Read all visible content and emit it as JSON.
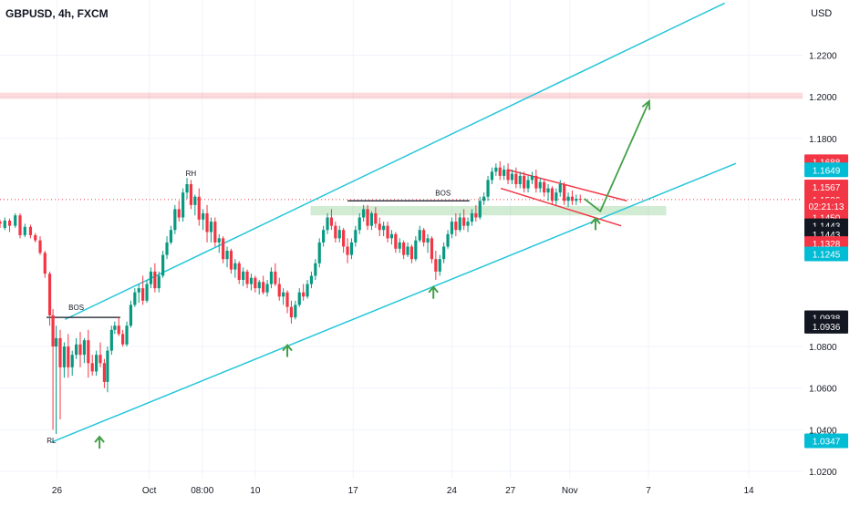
{
  "header": {
    "title": "GBPUSD, 4h, FXCM",
    "currency": "USD"
  },
  "chart_data": {
    "type": "candlestick",
    "symbol": "GBPUSD",
    "timeframe": "4h",
    "source": "FXCM",
    "y_axis": {
      "ticks": [
        "1.2200",
        "1.2000",
        "1.1800",
        "1.0800",
        "1.0600",
        "1.0400",
        "1.0200"
      ],
      "tick_values": [
        1.22,
        1.2,
        1.18,
        1.08,
        1.06,
        1.04,
        1.02
      ],
      "ylim": [
        1.0165,
        1.2465
      ]
    },
    "x_axis": {
      "ticks": [
        "26",
        "Oct",
        "08:00",
        "10",
        "17",
        "24",
        "27",
        "Nov",
        "7",
        "14"
      ],
      "xlim": [
        0,
        1
      ]
    },
    "price_labels": [
      {
        "value": "1.1688",
        "price": 1.1688,
        "bg": "#f23645",
        "fg": "#ffffff"
      },
      {
        "value": "1.1649",
        "price": 1.1649,
        "bg": "#00bcd4",
        "fg": "#ffffff"
      },
      {
        "value": "1.1567",
        "price": 1.1567,
        "bg": "#f23645",
        "fg": "#ffffff"
      },
      {
        "value": "1.1506",
        "price": 1.1506,
        "bg": "#f23645",
        "fg": "#ffffff"
      },
      {
        "value": "02:21:13",
        "price": 1.1475,
        "bg": "#f23645",
        "fg": "#ffffff"
      },
      {
        "value": "1.1450",
        "price": 1.142,
        "bg": "#f23645",
        "fg": "#ffffff"
      },
      {
        "value": "1.1443",
        "price": 1.138,
        "bg": "#131722",
        "fg": "#ffffff"
      },
      {
        "value": "1.1443",
        "price": 1.134,
        "bg": "#131722",
        "fg": "#ffffff"
      },
      {
        "value": "1.1328",
        "price": 1.1295,
        "bg": "#f23645",
        "fg": "#ffffff"
      },
      {
        "value": "1.1245",
        "price": 1.1245,
        "bg": "#00bcd4",
        "fg": "#ffffff"
      },
      {
        "value": "1.0938",
        "price": 1.0938,
        "bg": "#131722",
        "fg": "#ffffff"
      },
      {
        "value": "1.0936",
        "price": 1.0897,
        "bg": "#131722",
        "fg": "#ffffff"
      },
      {
        "value": "1.0347",
        "price": 1.0347,
        "bg": "#00bcd4",
        "fg": "#ffffff"
      }
    ],
    "annotations": [
      {
        "text": "BOS",
        "x": 0.095,
        "price": 1.0975
      },
      {
        "text": "RH",
        "x": 0.238,
        "price": 1.162
      },
      {
        "text": "RL",
        "x": 0.064,
        "price": 1.0335
      },
      {
        "text": "BOS",
        "x": 0.552,
        "price": 1.1525
      }
    ],
    "candles": [
      [
        0.0,
        1.14,
        1.141,
        1.139,
        1.137
      ],
      [
        0.006,
        1.137,
        1.142,
        1.1405,
        1.136
      ],
      [
        0.012,
        1.1405,
        1.1415,
        1.138,
        1.135
      ],
      [
        0.019,
        1.138,
        1.144,
        1.143,
        1.137
      ],
      [
        0.025,
        1.143,
        1.144,
        1.1335,
        1.132
      ],
      [
        0.031,
        1.1335,
        1.139,
        1.1375,
        1.1325
      ],
      [
        0.038,
        1.1375,
        1.1385,
        1.1335,
        1.132
      ],
      [
        0.044,
        1.1335,
        1.1345,
        1.131,
        1.13
      ],
      [
        0.05,
        1.131,
        1.133,
        1.125,
        1.124
      ],
      [
        0.056,
        1.125,
        1.126,
        1.115,
        1.113
      ],
      [
        0.062,
        1.115,
        1.116,
        1.095,
        1.09
      ],
      [
        0.066,
        1.095,
        1.098,
        1.08,
        1.04
      ],
      [
        0.07,
        1.08,
        1.09,
        1.084,
        1.038
      ],
      [
        0.075,
        1.084,
        1.088,
        1.07,
        1.045
      ],
      [
        0.08,
        1.07,
        1.082,
        1.08,
        1.065
      ],
      [
        0.085,
        1.08,
        1.086,
        1.07,
        1.065
      ],
      [
        0.09,
        1.07,
        1.078,
        1.076,
        1.066
      ],
      [
        0.095,
        1.076,
        1.084,
        1.081,
        1.074
      ],
      [
        0.1,
        1.081,
        1.087,
        1.076,
        1.07
      ],
      [
        0.105,
        1.076,
        1.084,
        1.083,
        1.072
      ],
      [
        0.11,
        1.083,
        1.088,
        1.072,
        1.065
      ],
      [
        0.115,
        1.072,
        1.076,
        1.068,
        1.066
      ],
      [
        0.12,
        1.068,
        1.078,
        1.076,
        1.066
      ],
      [
        0.125,
        1.076,
        1.082,
        1.072,
        1.07
      ],
      [
        0.13,
        1.072,
        1.074,
        1.063,
        1.06
      ],
      [
        0.134,
        1.063,
        1.08,
        1.078,
        1.058
      ],
      [
        0.139,
        1.078,
        1.09,
        1.088,
        1.076
      ],
      [
        0.143,
        1.088,
        1.092,
        1.09,
        1.086
      ],
      [
        0.148,
        1.09,
        1.094,
        1.086,
        1.085
      ],
      [
        0.153,
        1.086,
        1.088,
        1.081,
        1.08
      ],
      [
        0.158,
        1.081,
        1.092,
        1.09,
        1.08
      ],
      [
        0.163,
        1.09,
        1.102,
        1.1,
        1.089
      ],
      [
        0.168,
        1.1,
        1.108,
        1.106,
        1.099
      ],
      [
        0.173,
        1.106,
        1.11,
        1.108,
        1.101
      ],
      [
        0.178,
        1.108,
        1.114,
        1.102,
        1.1
      ],
      [
        0.183,
        1.102,
        1.112,
        1.11,
        1.101
      ],
      [
        0.188,
        1.11,
        1.118,
        1.116,
        1.108
      ],
      [
        0.193,
        1.116,
        1.12,
        1.108,
        1.106
      ],
      [
        0.198,
        1.108,
        1.116,
        1.114,
        1.106
      ],
      [
        0.203,
        1.114,
        1.126,
        1.124,
        1.113
      ],
      [
        0.208,
        1.124,
        1.133,
        1.13,
        1.122
      ],
      [
        0.213,
        1.13,
        1.138,
        1.136,
        1.129
      ],
      [
        0.218,
        1.136,
        1.148,
        1.146,
        1.134
      ],
      [
        0.223,
        1.146,
        1.15,
        1.142,
        1.14
      ],
      [
        0.228,
        1.142,
        1.156,
        1.154,
        1.14
      ],
      [
        0.233,
        1.154,
        1.161,
        1.158,
        1.151
      ],
      [
        0.238,
        1.158,
        1.16,
        1.148,
        1.146
      ],
      [
        0.243,
        1.148,
        1.153,
        1.152,
        1.143
      ],
      [
        0.248,
        1.152,
        1.156,
        1.141,
        1.138
      ],
      [
        0.253,
        1.141,
        1.146,
        1.144,
        1.136
      ],
      [
        0.258,
        1.144,
        1.148,
        1.135,
        1.13
      ],
      [
        0.263,
        1.135,
        1.142,
        1.14,
        1.13
      ],
      [
        0.268,
        1.14,
        1.142,
        1.13,
        1.128
      ],
      [
        0.273,
        1.13,
        1.134,
        1.132,
        1.125
      ],
      [
        0.278,
        1.132,
        1.133,
        1.122,
        1.12
      ],
      [
        0.283,
        1.122,
        1.128,
        1.126,
        1.118
      ],
      [
        0.288,
        1.126,
        1.127,
        1.117,
        1.115
      ],
      [
        0.293,
        1.117,
        1.122,
        1.12,
        1.113
      ],
      [
        0.298,
        1.12,
        1.121,
        1.112,
        1.11
      ],
      [
        0.303,
        1.112,
        1.118,
        1.116,
        1.109
      ],
      [
        0.308,
        1.116,
        1.117,
        1.11,
        1.108
      ],
      [
        0.313,
        1.11,
        1.115,
        1.113,
        1.107
      ],
      [
        0.318,
        1.113,
        1.114,
        1.108,
        1.106
      ],
      [
        0.323,
        1.108,
        1.112,
        1.111,
        1.105
      ],
      [
        0.328,
        1.111,
        1.114,
        1.106,
        1.105
      ],
      [
        0.333,
        1.106,
        1.112,
        1.11,
        1.104
      ],
      [
        0.338,
        1.11,
        1.118,
        1.116,
        1.108
      ],
      [
        0.343,
        1.116,
        1.12,
        1.11,
        1.109
      ],
      [
        0.348,
        1.11,
        1.113,
        1.104,
        1.102
      ],
      [
        0.353,
        1.104,
        1.108,
        1.106,
        1.1
      ],
      [
        0.358,
        1.106,
        1.107,
        1.099,
        1.096
      ],
      [
        0.363,
        1.099,
        1.102,
        1.094,
        1.091
      ],
      [
        0.368,
        1.094,
        1.102,
        1.1,
        1.093
      ],
      [
        0.373,
        1.1,
        1.108,
        1.106,
        1.099
      ],
      [
        0.378,
        1.106,
        1.11,
        1.104,
        1.102
      ],
      [
        0.383,
        1.104,
        1.112,
        1.11,
        1.103
      ],
      [
        0.388,
        1.11,
        1.116,
        1.114,
        1.108
      ],
      [
        0.393,
        1.114,
        1.122,
        1.12,
        1.112
      ],
      [
        0.398,
        1.12,
        1.132,
        1.13,
        1.118
      ],
      [
        0.403,
        1.13,
        1.138,
        1.136,
        1.128
      ],
      [
        0.408,
        1.136,
        1.144,
        1.142,
        1.134
      ],
      [
        0.413,
        1.142,
        1.146,
        1.138,
        1.136
      ],
      [
        0.418,
        1.138,
        1.14,
        1.132,
        1.13
      ],
      [
        0.423,
        1.132,
        1.138,
        1.136,
        1.13
      ],
      [
        0.428,
        1.136,
        1.137,
        1.128,
        1.125
      ],
      [
        0.433,
        1.128,
        1.132,
        1.124,
        1.12
      ],
      [
        0.438,
        1.124,
        1.132,
        1.13,
        1.122
      ],
      [
        0.443,
        1.13,
        1.138,
        1.136,
        1.128
      ],
      [
        0.448,
        1.136,
        1.144,
        1.142,
        1.134
      ],
      [
        0.453,
        1.142,
        1.148,
        1.146,
        1.14
      ],
      [
        0.458,
        1.146,
        1.148,
        1.138,
        1.136
      ],
      [
        0.463,
        1.138,
        1.145,
        1.144,
        1.136
      ],
      [
        0.468,
        1.144,
        1.147,
        1.139,
        1.137
      ],
      [
        0.473,
        1.139,
        1.142,
        1.136,
        1.133
      ],
      [
        0.478,
        1.136,
        1.14,
        1.138,
        1.133
      ],
      [
        0.483,
        1.138,
        1.14,
        1.132,
        1.13
      ],
      [
        0.488,
        1.132,
        1.136,
        1.134,
        1.129
      ],
      [
        0.493,
        1.134,
        1.135,
        1.127,
        1.125
      ],
      [
        0.498,
        1.127,
        1.132,
        1.13,
        1.125
      ],
      [
        0.503,
        1.13,
        1.131,
        1.124,
        1.122
      ],
      [
        0.508,
        1.124,
        1.13,
        1.128,
        1.123
      ],
      [
        0.513,
        1.128,
        1.129,
        1.122,
        1.12
      ],
      [
        0.518,
        1.122,
        1.133,
        1.131,
        1.121
      ],
      [
        0.523,
        1.131,
        1.138,
        1.136,
        1.13
      ],
      [
        0.528,
        1.136,
        1.137,
        1.13,
        1.128
      ],
      [
        0.533,
        1.13,
        1.134,
        1.132,
        1.125
      ],
      [
        0.538,
        1.132,
        1.133,
        1.122,
        1.12
      ],
      [
        0.543,
        1.122,
        1.126,
        1.116,
        1.112
      ],
      [
        0.548,
        1.116,
        1.124,
        1.122,
        1.114
      ],
      [
        0.553,
        1.122,
        1.13,
        1.128,
        1.12
      ],
      [
        0.558,
        1.128,
        1.136,
        1.134,
        1.127
      ],
      [
        0.563,
        1.134,
        1.142,
        1.14,
        1.132
      ],
      [
        0.568,
        1.14,
        1.144,
        1.136,
        1.133
      ],
      [
        0.573,
        1.136,
        1.144,
        1.142,
        1.135
      ],
      [
        0.578,
        1.142,
        1.146,
        1.138,
        1.136
      ],
      [
        0.583,
        1.138,
        1.142,
        1.14,
        1.135
      ],
      [
        0.588,
        1.14,
        1.146,
        1.144,
        1.138
      ],
      [
        0.593,
        1.144,
        1.148,
        1.142,
        1.14
      ],
      [
        0.598,
        1.142,
        1.152,
        1.15,
        1.141
      ],
      [
        0.603,
        1.15,
        1.154,
        1.152,
        1.148
      ],
      [
        0.608,
        1.152,
        1.162,
        1.16,
        1.15
      ],
      [
        0.613,
        1.16,
        1.166,
        1.164,
        1.158
      ],
      [
        0.618,
        1.164,
        1.168,
        1.166,
        1.162
      ],
      [
        0.623,
        1.166,
        1.169,
        1.162,
        1.16
      ],
      [
        0.628,
        1.162,
        1.167,
        1.165,
        1.16
      ],
      [
        0.633,
        1.165,
        1.168,
        1.16,
        1.158
      ],
      [
        0.638,
        1.16,
        1.165,
        1.163,
        1.158
      ],
      [
        0.643,
        1.163,
        1.166,
        1.158,
        1.156
      ],
      [
        0.648,
        1.158,
        1.164,
        1.162,
        1.156
      ],
      [
        0.653,
        1.162,
        1.164,
        1.156,
        1.154
      ],
      [
        0.658,
        1.156,
        1.162,
        1.16,
        1.154
      ],
      [
        0.663,
        1.16,
        1.164,
        1.162,
        1.158
      ],
      [
        0.668,
        1.162,
        1.165,
        1.156,
        1.154
      ],
      [
        0.673,
        1.156,
        1.161,
        1.159,
        1.154
      ],
      [
        0.678,
        1.159,
        1.16,
        1.154,
        1.152
      ],
      [
        0.683,
        1.154,
        1.158,
        1.156,
        1.15
      ],
      [
        0.688,
        1.156,
        1.157,
        1.15,
        1.148
      ],
      [
        0.693,
        1.15,
        1.156,
        1.154,
        1.148
      ],
      [
        0.698,
        1.154,
        1.16,
        1.158,
        1.152
      ],
      [
        0.703,
        1.158,
        1.159,
        1.15,
        1.148
      ],
      [
        0.708,
        1.15,
        1.154,
        1.152,
        1.147
      ],
      [
        0.713,
        1.152,
        1.155,
        1.15,
        1.148
      ],
      [
        0.718,
        1.15,
        1.153,
        1.151,
        1.148
      ],
      [
        0.723,
        1.151,
        1.153,
        1.1506,
        1.149
      ]
    ],
    "trendlines": [
      {
        "name": "channel-upper",
        "color": "#26c6da",
        "from": [
          0.081,
          1.093
        ],
        "to": [
          0.903,
          1.245
        ]
      },
      {
        "name": "channel-lower",
        "color": "#26c6da",
        "from": [
          0.064,
          1.034
        ],
        "to": [
          0.917,
          1.168
        ]
      },
      {
        "name": "flag-upper",
        "color": "#f23645",
        "from": [
          0.632,
          1.165
        ],
        "to": [
          0.781,
          1.15
        ]
      },
      {
        "name": "flag-lower",
        "color": "#f23645",
        "from": [
          0.624,
          1.156
        ],
        "to": [
          0.774,
          1.138
        ]
      }
    ],
    "bos_lines": [
      {
        "from": [
          0.058,
          1.094
        ],
        "to": [
          0.15,
          1.094
        ]
      },
      {
        "from": [
          0.433,
          1.15
        ],
        "to": [
          0.585,
          1.15
        ]
      }
    ],
    "zones": [
      {
        "name": "resistance-zone",
        "color": "#f23645",
        "opacity": 0.18,
        "price_top": 1.202,
        "price_bottom": 1.199
      },
      {
        "name": "support-zone",
        "color": "#4caf50",
        "opacity": 0.25,
        "price_top": 1.1475,
        "price_bottom": 1.143,
        "x_from": 0.387,
        "x_to": 0.83
      }
    ],
    "projection": {
      "color": "#43a047",
      "points": [
        [
          0.728,
          1.151
        ],
        [
          0.748,
          1.145
        ],
        [
          0.809,
          1.198
        ]
      ]
    },
    "up_arrows": [
      {
        "x": 0.124,
        "price": 1.034
      },
      {
        "x": 0.358,
        "price": 1.078
      },
      {
        "x": 0.54,
        "price": 1.106
      },
      {
        "x": 0.742,
        "price": 1.139
      }
    ],
    "last_price": 1.1506,
    "colors": {
      "up": "#089981",
      "down": "#f23645",
      "grid": "#f0f3fa",
      "axis_text": "#131722"
    }
  }
}
